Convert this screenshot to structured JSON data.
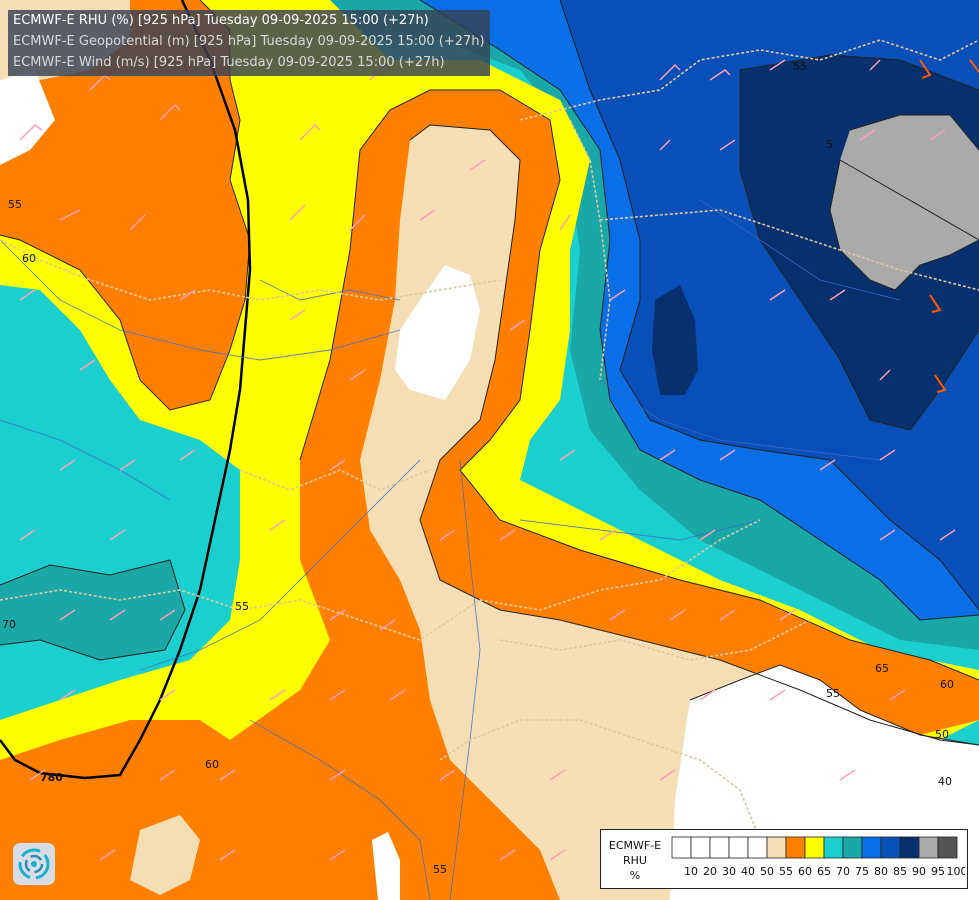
{
  "header": {
    "line1": "ECMWF-E RHU (%) [925 hPa] Tuesday 09-09-2025 15:00 (+27h)",
    "line2": "ECMWF-E Geopotential (m) [925 hPa] Tuesday 09-09-2025 15:00 (+27h)",
    "line3": "ECMWF-E Wind (m/s) [925 hPa] Tuesday 09-09-2025 15:00 (+27h)"
  },
  "legend": {
    "model": "ECMWF-E",
    "variable": "RHU",
    "unit": "%",
    "bins": [
      {
        "label": "10",
        "color": "#ffffff"
      },
      {
        "label": "20",
        "color": "#ffffff"
      },
      {
        "label": "30",
        "color": "#ffffff"
      },
      {
        "label": "40",
        "color": "#ffffff"
      },
      {
        "label": "50",
        "color": "#ffffff"
      },
      {
        "label": "55",
        "color": "#f5deb3"
      },
      {
        "label": "60",
        "color": "#ff8000"
      },
      {
        "label": "65",
        "color": "#ffff00"
      },
      {
        "label": "70",
        "color": "#1ccfcf"
      },
      {
        "label": "75",
        "color": "#1aa7a7"
      },
      {
        "label": "80",
        "color": "#0a6fe6"
      },
      {
        "label": "85",
        "color": "#0850b8"
      },
      {
        "label": "90",
        "color": "#06306e"
      },
      {
        "label": "95",
        "color": "#aaaaaa"
      },
      {
        "label": "100",
        "color": "#555555"
      }
    ]
  },
  "contour_labels": [
    "55",
    "60",
    "55",
    "65",
    "60",
    "55",
    "50",
    "40",
    "55",
    "60",
    "70",
    "55",
    "780",
    "60",
    "5"
  ]
}
